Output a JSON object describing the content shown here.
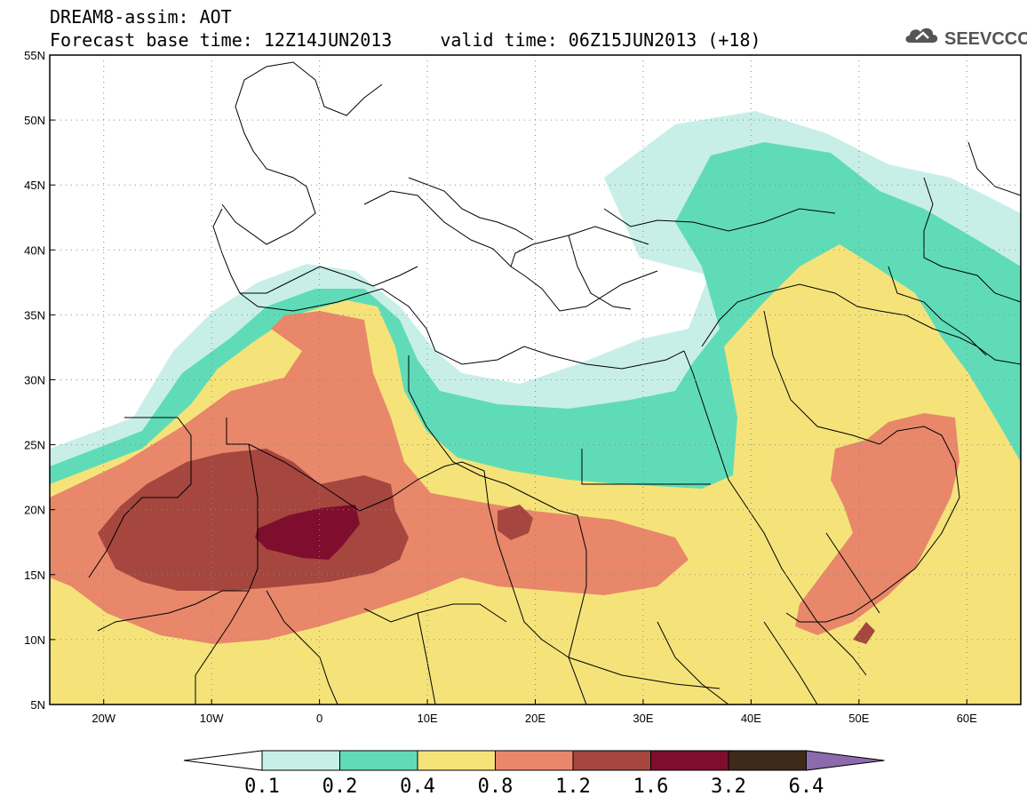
{
  "header": {
    "line1": "DREAM8-assim: AOT",
    "base_label": "Forecast base time: 12Z14JUN2013",
    "valid_label": "valid time: 06Z15JUN2013 (+18)"
  },
  "logo": {
    "text": "SEEVCCC",
    "icon": "cloud-icon"
  },
  "map": {
    "lat_labels": [
      "55N",
      "50N",
      "45N",
      "40N",
      "35N",
      "30N",
      "25N",
      "20N",
      "15N",
      "10N",
      "5N"
    ],
    "lon_labels": [
      "20W",
      "10W",
      "0",
      "10E",
      "20E",
      "30E",
      "40E",
      "50E",
      "60E"
    ],
    "lat_range": [
      5,
      55
    ],
    "lon_range": [
      -25,
      65
    ],
    "grid": "dotted"
  },
  "legend": {
    "labels": [
      "0.1",
      "0.2",
      "0.4",
      "0.8",
      "1.2",
      "1.6",
      "3.2",
      "6.4"
    ],
    "colors": [
      "#ffffff",
      "#c7efe8",
      "#5fdcb7",
      "#f5e37a",
      "#e8876a",
      "#a5473f",
      "#7f0d2e",
      "#3e2a18",
      "#8c6aad"
    ]
  },
  "colors": {
    "aot_0_1": "#c7efe8",
    "aot_0_2": "#5fdcb7",
    "aot_0_4": "#f5e37a",
    "aot_0_8": "#e8876a",
    "aot_1_2": "#a5473f",
    "aot_1_6": "#7f0d2e"
  }
}
